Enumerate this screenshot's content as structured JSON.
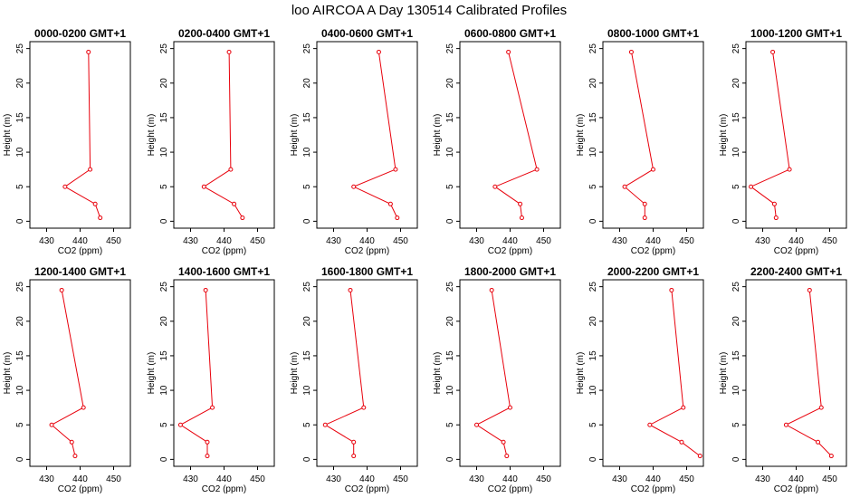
{
  "figure_title": "loo AIRCOA A  Day 130514  Calibrated Profiles",
  "colors": {
    "series": "#e8000b",
    "axes": "#000000",
    "background": "#ffffff"
  },
  "chart_data": [
    {
      "type": "line",
      "title": "0000-0200 GMT+1",
      "xlabel": "CO2 (ppm)",
      "ylabel": "Height (m)",
      "xlim": [
        425,
        455
      ],
      "ylim": [
        -1,
        26
      ],
      "xticks": [
        430,
        440,
        450
      ],
      "yticks": [
        0,
        5,
        10,
        15,
        20,
        25
      ],
      "x": [
        446.0,
        444.5,
        435.5,
        443.0,
        442.5
      ],
      "y": [
        0.5,
        2.5,
        5.0,
        7.5,
        24.5
      ]
    },
    {
      "type": "line",
      "title": "0200-0400 GMT+1",
      "xlabel": "CO2 (ppm)",
      "ylabel": "Height (m)",
      "xlim": [
        425,
        455
      ],
      "ylim": [
        -1,
        26
      ],
      "xticks": [
        430,
        440,
        450
      ],
      "yticks": [
        0,
        5,
        10,
        15,
        20,
        25
      ],
      "x": [
        445.5,
        443.0,
        434.0,
        442.0,
        441.5
      ],
      "y": [
        0.5,
        2.5,
        5.0,
        7.5,
        24.5
      ]
    },
    {
      "type": "line",
      "title": "0400-0600 GMT+1",
      "xlabel": "CO2 (ppm)",
      "ylabel": "Height (m)",
      "xlim": [
        425,
        455
      ],
      "ylim": [
        -1,
        26
      ],
      "xticks": [
        430,
        440,
        450
      ],
      "yticks": [
        0,
        5,
        10,
        15,
        20,
        25
      ],
      "x": [
        449.0,
        447.0,
        436.0,
        448.5,
        443.5
      ],
      "y": [
        0.5,
        2.5,
        5.0,
        7.5,
        24.5
      ]
    },
    {
      "type": "line",
      "title": "0600-0800 GMT+1",
      "xlabel": "CO2 (ppm)",
      "ylabel": "Height (m)",
      "xlim": [
        425,
        455
      ],
      "ylim": [
        -1,
        26
      ],
      "xticks": [
        430,
        440,
        450
      ],
      "yticks": [
        0,
        5,
        10,
        15,
        20,
        25
      ],
      "x": [
        443.5,
        443.0,
        435.5,
        448.0,
        439.5
      ],
      "y": [
        0.5,
        2.5,
        5.0,
        7.5,
        24.5
      ]
    },
    {
      "type": "line",
      "title": "0800-1000 GMT+1",
      "xlabel": "CO2 (ppm)",
      "ylabel": "Height (m)",
      "xlim": [
        425,
        455
      ],
      "ylim": [
        -1,
        26
      ],
      "xticks": [
        430,
        440,
        450
      ],
      "yticks": [
        0,
        5,
        10,
        15,
        20,
        25
      ],
      "x": [
        437.5,
        437.5,
        431.5,
        440.0,
        433.5
      ],
      "y": [
        0.5,
        2.5,
        5.0,
        7.5,
        24.5
      ]
    },
    {
      "type": "line",
      "title": "1000-1200 GMT+1",
      "xlabel": "CO2 (ppm)",
      "ylabel": "Height (m)",
      "xlim": [
        425,
        455
      ],
      "ylim": [
        -1,
        26
      ],
      "xticks": [
        430,
        440,
        450
      ],
      "yticks": [
        0,
        5,
        10,
        15,
        20,
        25
      ],
      "x": [
        434.0,
        433.5,
        426.5,
        438.0,
        433.0
      ],
      "y": [
        0.5,
        2.5,
        5.0,
        7.5,
        24.5
      ]
    },
    {
      "type": "line",
      "title": "1200-1400 GMT+1",
      "xlabel": "CO2 (ppm)",
      "ylabel": "Height (m)",
      "xlim": [
        425,
        455
      ],
      "ylim": [
        -1,
        26
      ],
      "xticks": [
        430,
        440,
        450
      ],
      "yticks": [
        0,
        5,
        10,
        15,
        20,
        25
      ],
      "x": [
        438.5,
        437.5,
        431.5,
        441.0,
        434.5
      ],
      "y": [
        0.5,
        2.5,
        5.0,
        7.5,
        24.5
      ]
    },
    {
      "type": "line",
      "title": "1400-1600 GMT+1",
      "xlabel": "CO2 (ppm)",
      "ylabel": "Height (m)",
      "xlim": [
        425,
        455
      ],
      "ylim": [
        -1,
        26
      ],
      "xticks": [
        430,
        440,
        450
      ],
      "yticks": [
        0,
        5,
        10,
        15,
        20,
        25
      ],
      "x": [
        435.0,
        435.0,
        427.0,
        436.5,
        434.5
      ],
      "y": [
        0.5,
        2.5,
        5.0,
        7.5,
        24.5
      ]
    },
    {
      "type": "line",
      "title": "1600-1800 GMT+1",
      "xlabel": "CO2 (ppm)",
      "ylabel": "Height (m)",
      "xlim": [
        425,
        455
      ],
      "ylim": [
        -1,
        26
      ],
      "xticks": [
        430,
        440,
        450
      ],
      "yticks": [
        0,
        5,
        10,
        15,
        20,
        25
      ],
      "x": [
        436.0,
        436.0,
        427.5,
        439.0,
        435.0
      ],
      "y": [
        0.5,
        2.5,
        5.0,
        7.5,
        24.5
      ]
    },
    {
      "type": "line",
      "title": "1800-2000 GMT+1",
      "xlabel": "CO2 (ppm)",
      "ylabel": "Height (m)",
      "xlim": [
        425,
        455
      ],
      "ylim": [
        -1,
        26
      ],
      "xticks": [
        430,
        440,
        450
      ],
      "yticks": [
        0,
        5,
        10,
        15,
        20,
        25
      ],
      "x": [
        439.0,
        438.0,
        430.0,
        440.0,
        434.5
      ],
      "y": [
        0.5,
        2.5,
        5.0,
        7.5,
        24.5
      ]
    },
    {
      "type": "line",
      "title": "2000-2200 GMT+1",
      "xlabel": "CO2 (ppm)",
      "ylabel": "Height (m)",
      "xlim": [
        425,
        455
      ],
      "ylim": [
        -1,
        26
      ],
      "xticks": [
        430,
        440,
        450
      ],
      "yticks": [
        0,
        5,
        10,
        15,
        20,
        25
      ],
      "x": [
        454.0,
        448.5,
        439.0,
        449.0,
        445.5
      ],
      "y": [
        0.5,
        2.5,
        5.0,
        7.5,
        24.5
      ]
    },
    {
      "type": "line",
      "title": "2200-2400 GMT+1",
      "xlabel": "CO2 (ppm)",
      "ylabel": "Height (m)",
      "xlim": [
        425,
        455
      ],
      "ylim": [
        -1,
        26
      ],
      "xticks": [
        430,
        440,
        450
      ],
      "yticks": [
        0,
        5,
        10,
        15,
        20,
        25
      ],
      "x": [
        450.5,
        446.5,
        437.0,
        447.5,
        444.0
      ],
      "y": [
        0.5,
        2.5,
        5.0,
        7.5,
        24.5
      ]
    }
  ]
}
